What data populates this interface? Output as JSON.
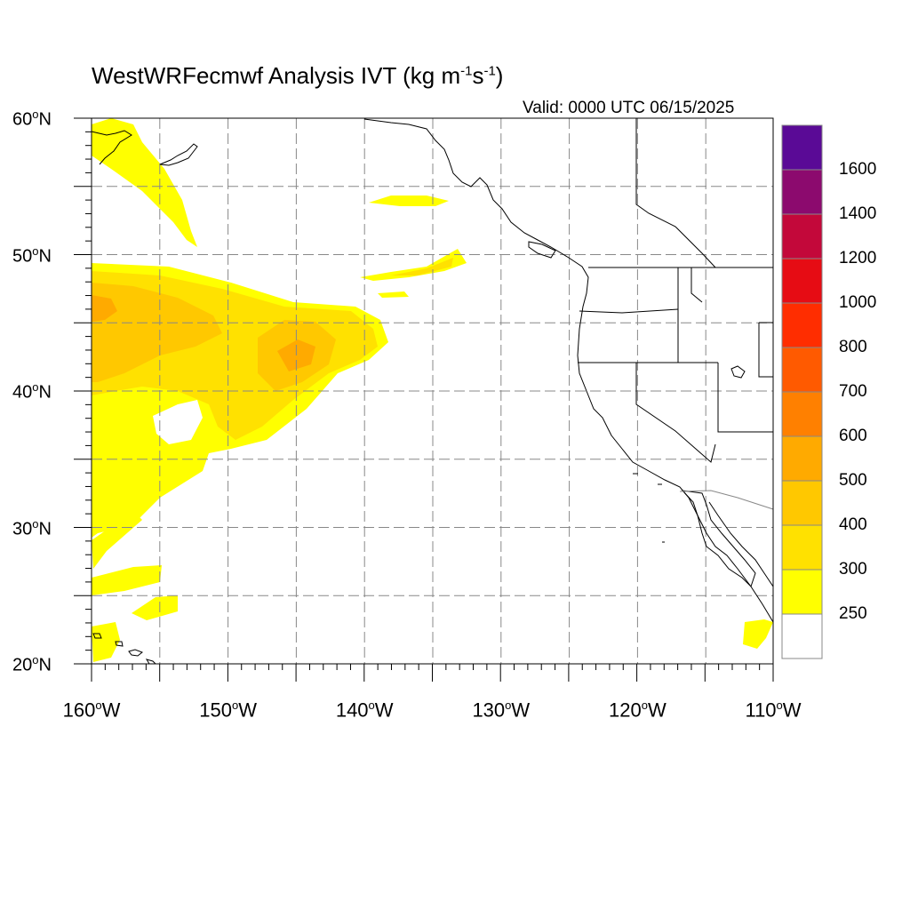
{
  "title": {
    "main": "WestWRFecmwf Analysis IVT (kg m",
    "exp1": "-1",
    "mid": "s",
    "exp2": "-1",
    "close": ")"
  },
  "valid_time": "Valid: 0000 UTC 06/15/2025",
  "lat_labels": [
    {
      "deg": "60",
      "hemi": "N"
    },
    {
      "deg": "50",
      "hemi": "N"
    },
    {
      "deg": "40",
      "hemi": "N"
    },
    {
      "deg": "30",
      "hemi": "N"
    },
    {
      "deg": "20",
      "hemi": "N"
    }
  ],
  "lon_labels": [
    {
      "deg": "160",
      "hemi": "W"
    },
    {
      "deg": "150",
      "hemi": "W"
    },
    {
      "deg": "140",
      "hemi": "W"
    },
    {
      "deg": "130",
      "hemi": "W"
    },
    {
      "deg": "120",
      "hemi": "W"
    },
    {
      "deg": "110",
      "hemi": "W"
    }
  ],
  "colorbar": {
    "labels": [
      "1600",
      "1400",
      "1200",
      "1000",
      "800",
      "700",
      "600",
      "500",
      "400",
      "300",
      "250"
    ],
    "colors": [
      "#5a0a96",
      "#8c0a6e",
      "#c3083a",
      "#e60c14",
      "#ff2d00",
      "#ff5a00",
      "#ff8000",
      "#ffaa00",
      "#ffc800",
      "#ffe100",
      "#ffff00",
      "#ffffff"
    ]
  },
  "map_extent": {
    "lon_min": -160,
    "lon_max": -110,
    "lat_min": 20,
    "lat_max": 60
  },
  "ivt_colors": {
    "c250": "#ffff00",
    "c300": "#ffe100",
    "c400": "#ffc800",
    "c500": "#ffaa00"
  }
}
